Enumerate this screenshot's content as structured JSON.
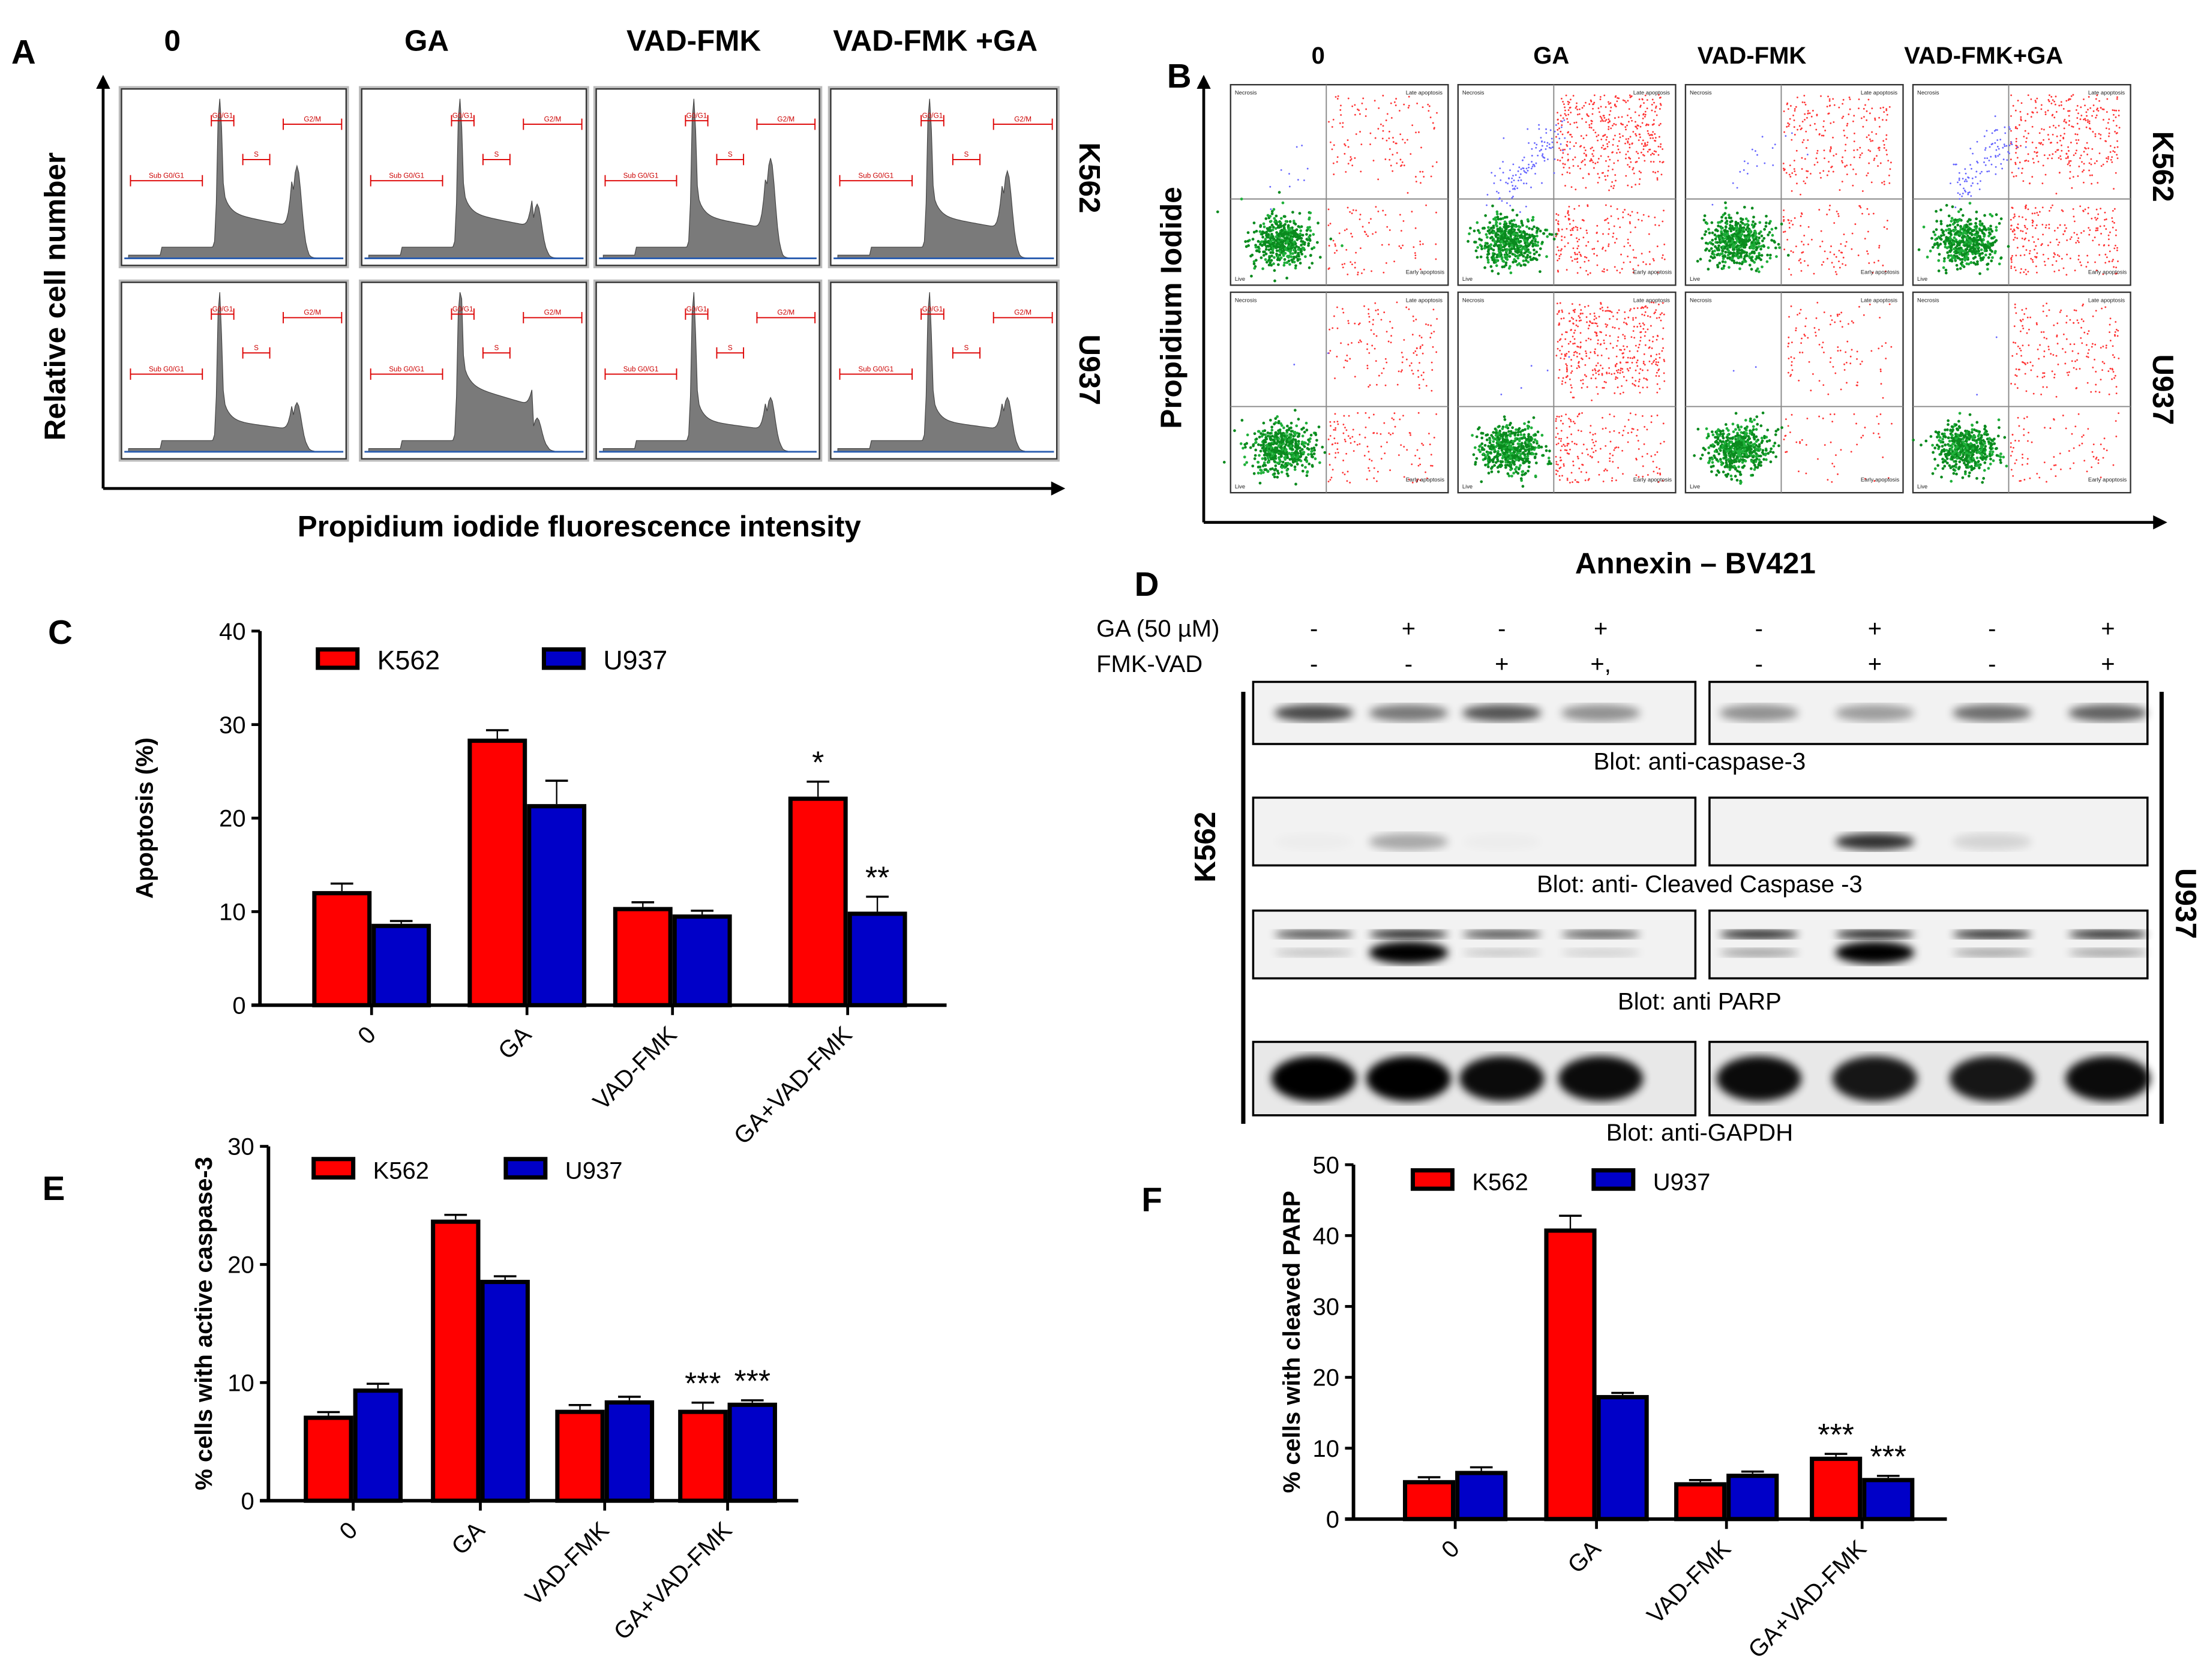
{
  "panel_labels": {
    "a": "A",
    "b": "B",
    "c": "C",
    "d": "D",
    "e": "E",
    "f": "F"
  },
  "panel_a": {
    "columns": [
      "0",
      "GA",
      "VAD-FMK",
      "VAD-FMK +GA"
    ],
    "rows": [
      "K562",
      "U937"
    ],
    "ylabel": "Relative cell number",
    "xlabel": "Propidium iodide fluorescence intensity",
    "gates": [
      "Sub G0/G1",
      "G0/G1",
      "S",
      "G2/M"
    ]
  },
  "panel_b": {
    "columns": [
      "0",
      "GA",
      "VAD-FMK",
      "VAD-FMK+GA"
    ],
    "rows": [
      "K562",
      "U937"
    ],
    "ylabel": "Propidium Iodide",
    "xlabel": "Annexin – BV421",
    "quadrants": [
      "Necrosis",
      "Late apoptosis",
      "Live",
      "Early apoptosis"
    ]
  },
  "panel_d": {
    "treatments": [
      {
        "label": "GA (50 µM)",
        "values": [
          "-",
          "+",
          "-",
          "+",
          "-",
          "+",
          "-",
          "+"
        ]
      },
      {
        "label": "FMK-VAD",
        "values": [
          "-",
          "-",
          "+",
          "+,",
          "-",
          "+",
          "-",
          "+"
        ]
      }
    ],
    "cell_lines": [
      "K562",
      "U937"
    ],
    "blots": [
      {
        "label": "Blot: anti-caspase-3",
        "band_intensity": [
          0.7,
          0.5,
          0.65,
          0.4,
          0.4,
          0.35,
          0.55,
          0.6
        ]
      },
      {
        "label": "Blot: anti- Cleaved  Caspase -3",
        "band_intensity": [
          0.02,
          0.3,
          0.02,
          0.0,
          0.0,
          0.8,
          0.12,
          0.0
        ]
      },
      {
        "label": "Blot: anti PARP",
        "band_intensity": [
          0.5,
          0.95,
          0.45,
          0.35,
          0.9,
          1.0,
          0.85,
          0.85
        ]
      },
      {
        "label": "Blot: anti-GAPDH",
        "band_intensity": [
          1.0,
          1.0,
          0.95,
          0.95,
          0.95,
          0.9,
          0.9,
          0.95
        ]
      }
    ]
  },
  "colors": {
    "k562": "#ff0000",
    "u937": "#0000c8"
  },
  "chart_data": [
    {
      "id": "C",
      "type": "bar",
      "title": "",
      "xlabel": "",
      "ylabel": "Apoptosis (%)",
      "ylim": [
        0,
        40
      ],
      "yticks": [
        0,
        10,
        20,
        30,
        40
      ],
      "categories": [
        "0",
        "GA",
        "VAD-FMK",
        "GA+VAD-FMK"
      ],
      "series": [
        {
          "name": "K562",
          "values": [
            12.2,
            28.5,
            10.5,
            22.3
          ],
          "errors": [
            0.8,
            0.9,
            0.5,
            1.6
          ],
          "significance": [
            "",
            "",
            "",
            "*"
          ]
        },
        {
          "name": "U937",
          "values": [
            8.7,
            21.5,
            9.7,
            10.0
          ],
          "errors": [
            0.3,
            2.5,
            0.4,
            1.6
          ],
          "significance": [
            "",
            "",
            "",
            "**"
          ]
        }
      ],
      "legend": "top-left"
    },
    {
      "id": "E",
      "type": "bar",
      "title": "",
      "xlabel": "",
      "ylabel": "% cells with active caspase-3",
      "ylim": [
        0,
        30
      ],
      "yticks": [
        0,
        10,
        20,
        30
      ],
      "categories": [
        "0",
        "GA",
        "VAD-FMK",
        "GA+VAD-FMK"
      ],
      "series": [
        {
          "name": "K562",
          "values": [
            7.2,
            23.8,
            7.7,
            7.7
          ],
          "errors": [
            0.3,
            0.4,
            0.4,
            0.6
          ],
          "significance": [
            "",
            "",
            "",
            "***"
          ]
        },
        {
          "name": "U937",
          "values": [
            9.5,
            18.7,
            8.5,
            8.3
          ],
          "errors": [
            0.4,
            0.3,
            0.3,
            0.2
          ],
          "significance": [
            "",
            "",
            "",
            "***"
          ]
        }
      ],
      "legend": "top-left"
    },
    {
      "id": "F",
      "type": "bar",
      "title": "",
      "xlabel": "",
      "ylabel": "% cells with cleaved PARP",
      "ylim": [
        0,
        50
      ],
      "yticks": [
        0,
        10,
        20,
        30,
        40,
        50
      ],
      "categories": [
        "0",
        "GA",
        "VAD-FMK",
        "GA+VAD-FMK"
      ],
      "series": [
        {
          "name": "K562",
          "values": [
            5.5,
            41.0,
            5.2,
            8.8
          ],
          "errors": [
            0.4,
            1.8,
            0.3,
            0.4
          ],
          "significance": [
            "",
            "",
            "",
            "***"
          ]
        },
        {
          "name": "U937",
          "values": [
            6.8,
            17.5,
            6.4,
            5.8
          ],
          "errors": [
            0.5,
            0.3,
            0.3,
            0.3
          ],
          "significance": [
            "",
            "",
            "",
            "***"
          ]
        }
      ],
      "legend": "top-left"
    }
  ]
}
